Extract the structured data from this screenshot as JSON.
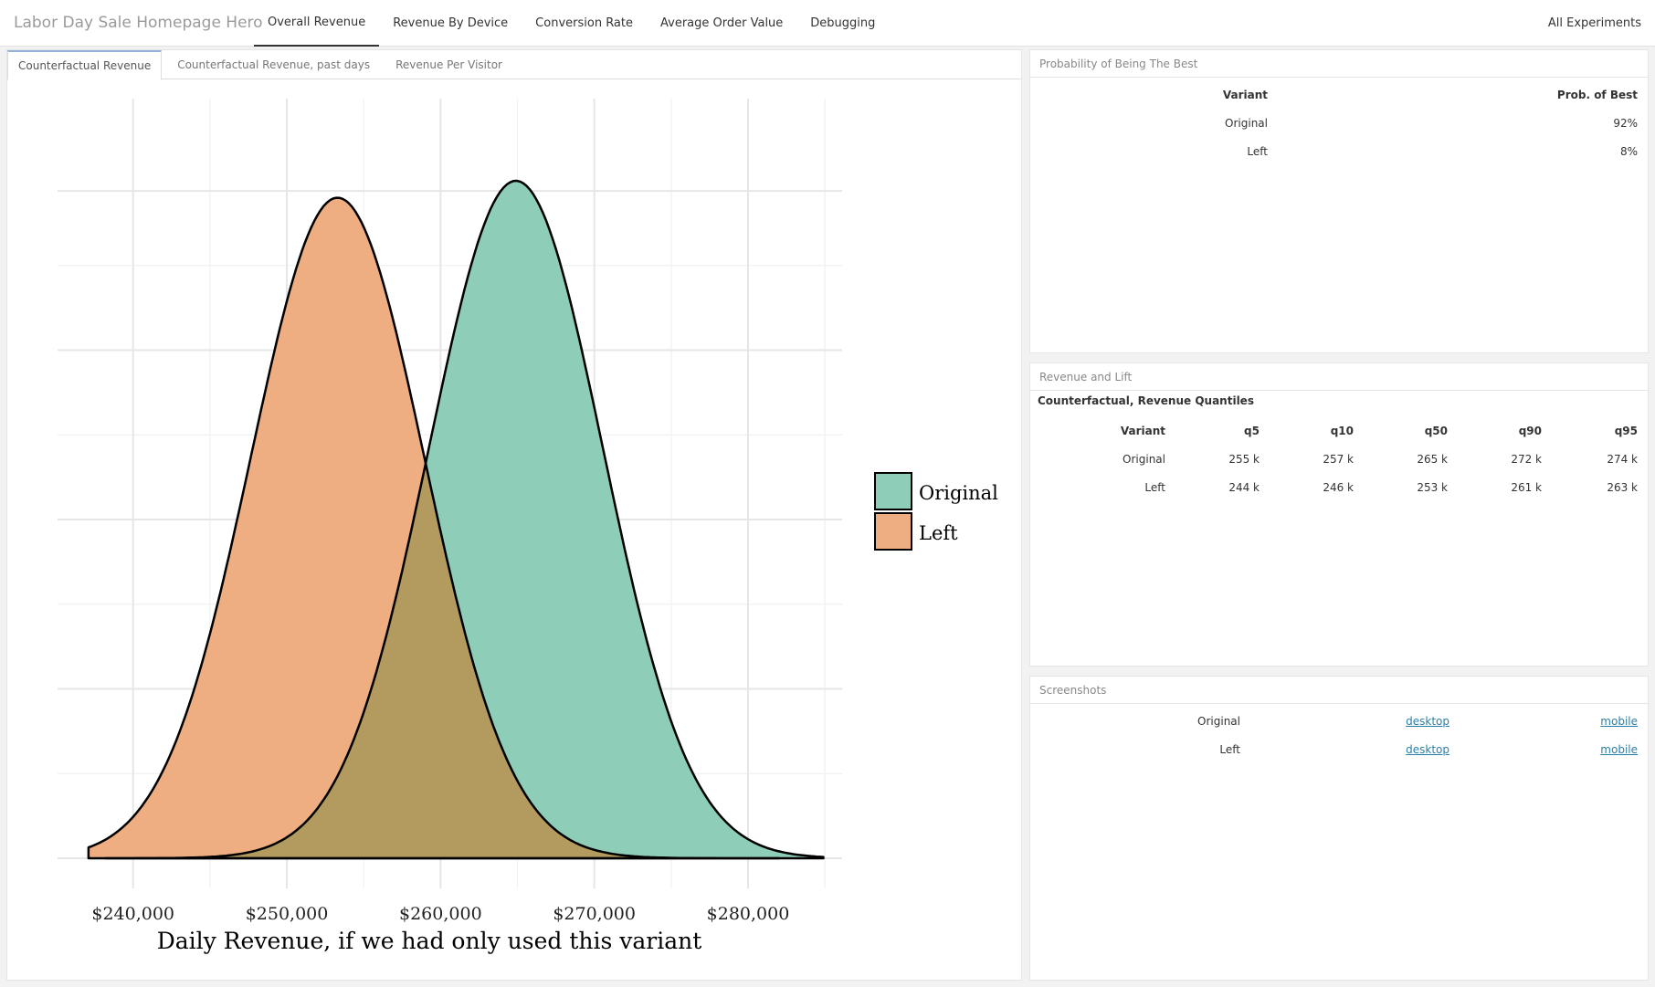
{
  "app": {
    "title": "Labor Day Sale Homepage Hero",
    "nav_tabs": [
      {
        "label": "Overall Revenue",
        "active": true
      },
      {
        "label": "Revenue By Device",
        "active": false
      },
      {
        "label": "Conversion Rate",
        "active": false
      },
      {
        "label": "Average Order Value",
        "active": false
      },
      {
        "label": "Debugging",
        "active": false
      }
    ],
    "nav_right": "All Experiments"
  },
  "left_panel": {
    "sub_tabs": [
      {
        "label": "Counterfactual Revenue",
        "active": true
      },
      {
        "label": "Counterfactual Revenue, past days",
        "active": false
      },
      {
        "label": "Revenue Per Visitor",
        "active": false
      }
    ]
  },
  "chart_data": {
    "type": "area",
    "subtype": "density",
    "title": "",
    "xlabel": "Daily Revenue, if we had only used this variant",
    "ylabel": "",
    "xlim": [
      235800,
      286000
    ],
    "x_ticks": [
      240000,
      250000,
      260000,
      270000,
      280000
    ],
    "x_tick_labels": [
      "$240,000",
      "$250,000",
      "$260,000",
      "$270,000",
      "$280,000"
    ],
    "grid": true,
    "legend_position": "right",
    "series": [
      {
        "name": "Original",
        "color": "#8ecdb7",
        "mode": 264900,
        "sd": 5650,
        "x_min": 238200,
        "x_max": 284900,
        "peak_relative": 1.0
      },
      {
        "name": "Left",
        "color": "#eeae82",
        "mode": 253300,
        "sd": 5650,
        "x_min": 237100,
        "x_max": 282000,
        "peak_relative": 0.975
      }
    ],
    "overlap_color": "#b39a5f"
  },
  "prob_best": {
    "header": "Probability of Being The Best",
    "columns": [
      "Variant",
      "Prob. of Best"
    ],
    "rows": [
      {
        "variant": "Original",
        "prob": "92%"
      },
      {
        "variant": "Left",
        "prob": "8%"
      }
    ]
  },
  "revenue_lift": {
    "header": "Revenue and Lift",
    "subheader": "Counterfactual, Revenue Quantiles",
    "columns": [
      "Variant",
      "q5",
      "q10",
      "q50",
      "q90",
      "q95"
    ],
    "rows": [
      {
        "variant": "Original",
        "q5": "255 k",
        "q10": "257 k",
        "q50": "265 k",
        "q90": "272 k",
        "q95": "274 k"
      },
      {
        "variant": "Left",
        "q5": "244 k",
        "q10": "246 k",
        "q50": "253 k",
        "q90": "261 k",
        "q95": "263 k"
      }
    ]
  },
  "screenshots": {
    "header": "Screenshots",
    "rows": [
      {
        "variant": "Original",
        "desktop": "desktop",
        "mobile": "mobile"
      },
      {
        "variant": "Left",
        "desktop": "desktop",
        "mobile": "mobile"
      }
    ]
  }
}
